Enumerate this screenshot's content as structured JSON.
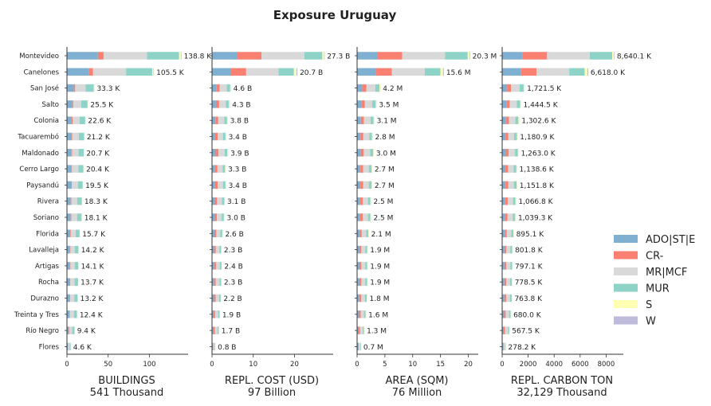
{
  "title": "Exposure Uruguay",
  "legend": {
    "placement": "right",
    "entries": [
      {
        "name": "ADO|ST|E",
        "color": "#7fafd1"
      },
      {
        "name": "CR-",
        "color": "#fa8072"
      },
      {
        "name": "MR|MCF",
        "color": "#d9d9d9"
      },
      {
        "name": "MUR",
        "color": "#8dd3c7"
      },
      {
        "name": "S",
        "color": "#ffffb3"
      },
      {
        "name": "W",
        "color": "#bebada"
      }
    ]
  },
  "chart_data": {
    "type": "bar",
    "orientation": "horizontal",
    "stacked": true,
    "grid": false,
    "categories": [
      "Montevideo",
      "Canelones",
      "San José",
      "Salto",
      "Colonia",
      "Tacuarembó",
      "Maldonado",
      "Cerro Largo",
      "Paysandú",
      "Rivera",
      "Soriano",
      "Florida",
      "Lavalleja",
      "Artigas",
      "Rocha",
      "Durazno",
      "Treinta y Tres",
      "Río Negro",
      "Flores"
    ],
    "panels": [
      {
        "xlabel": "BUILDINGS",
        "subtitle": "541 Thousand",
        "xlim": [
          0,
          145
        ],
        "xticks": [
          0,
          50,
          100
        ],
        "totals": [
          138.8,
          105.5,
          33.3,
          25.5,
          22.6,
          21.2,
          20.7,
          20.4,
          19.5,
          18.3,
          18.1,
          15.7,
          14.2,
          14.1,
          13.7,
          13.2,
          12.4,
          9.4,
          4.6
        ],
        "total_labels": [
          "138.8 K",
          "105.5 K",
          "33.3 K",
          "25.5 K",
          "22.6 K",
          "21.2 K",
          "20.7 K",
          "20.4 K",
          "19.5 K",
          "18.3 K",
          "18.1 K",
          "15.7 K",
          "14.2 K",
          "14.1 K",
          "13.7 K",
          "13.2 K",
          "12.4 K",
          "9.4 K",
          "4.6 K"
        ],
        "shares": [
          [
            0.27,
            0.05,
            0.38,
            0.28,
            0.015,
            0.005
          ],
          [
            0.25,
            0.05,
            0.38,
            0.3,
            0.015,
            0.005
          ],
          [
            0.25,
            0.05,
            0.38,
            0.3,
            0.015,
            0.005
          ],
          [
            0.25,
            0.05,
            0.38,
            0.3,
            0.015,
            0.005
          ],
          [
            0.25,
            0.05,
            0.38,
            0.3,
            0.015,
            0.005
          ],
          [
            0.25,
            0.05,
            0.38,
            0.3,
            0.015,
            0.005
          ],
          [
            0.25,
            0.05,
            0.38,
            0.3,
            0.015,
            0.005
          ],
          [
            0.25,
            0.05,
            0.38,
            0.3,
            0.015,
            0.005
          ],
          [
            0.25,
            0.05,
            0.38,
            0.3,
            0.015,
            0.005
          ],
          [
            0.25,
            0.05,
            0.38,
            0.3,
            0.015,
            0.005
          ],
          [
            0.25,
            0.05,
            0.38,
            0.3,
            0.015,
            0.005
          ],
          [
            0.25,
            0.05,
            0.38,
            0.3,
            0.015,
            0.005
          ],
          [
            0.25,
            0.05,
            0.38,
            0.3,
            0.015,
            0.005
          ],
          [
            0.25,
            0.05,
            0.38,
            0.3,
            0.015,
            0.005
          ],
          [
            0.25,
            0.05,
            0.38,
            0.3,
            0.015,
            0.005
          ],
          [
            0.25,
            0.05,
            0.38,
            0.3,
            0.015,
            0.005
          ],
          [
            0.25,
            0.05,
            0.38,
            0.3,
            0.015,
            0.005
          ],
          [
            0.25,
            0.05,
            0.38,
            0.3,
            0.015,
            0.005
          ],
          [
            0.25,
            0.05,
            0.38,
            0.3,
            0.015,
            0.005
          ]
        ]
      },
      {
        "xlabel": "REPL. COST (USD)",
        "subtitle": "97 Billion",
        "xlim": [
          0,
          29
        ],
        "xticks": [
          0,
          10,
          20
        ],
        "totals": [
          27.3,
          20.7,
          4.6,
          4.3,
          3.8,
          3.4,
          3.9,
          3.3,
          3.4,
          3.1,
          3.0,
          2.6,
          2.3,
          2.4,
          2.3,
          2.2,
          1.9,
          1.7,
          0.8
        ],
        "total_labels": [
          "27.3 B",
          "20.7 B",
          "4.6 B",
          "4.3 B",
          "3.8 B",
          "3.4 B",
          "3.9 B",
          "3.3 B",
          "3.4 B",
          "3.1 B",
          "3.0 B",
          "2.6 B",
          "2.3 B",
          "2.4 B",
          "2.3 B",
          "2.2 B",
          "1.9 B",
          "1.7 B",
          "0.8 B"
        ],
        "shares": [
          [
            0.22,
            0.22,
            0.38,
            0.16,
            0.015,
            0.005
          ],
          [
            0.22,
            0.18,
            0.38,
            0.18,
            0.03,
            0.01
          ],
          [
            0.22,
            0.18,
            0.38,
            0.18,
            0.03,
            0.01
          ],
          [
            0.22,
            0.18,
            0.38,
            0.18,
            0.03,
            0.01
          ],
          [
            0.22,
            0.18,
            0.38,
            0.18,
            0.03,
            0.01
          ],
          [
            0.22,
            0.18,
            0.38,
            0.18,
            0.03,
            0.01
          ],
          [
            0.22,
            0.18,
            0.38,
            0.18,
            0.03,
            0.01
          ],
          [
            0.22,
            0.18,
            0.38,
            0.18,
            0.03,
            0.01
          ],
          [
            0.22,
            0.18,
            0.38,
            0.18,
            0.03,
            0.01
          ],
          [
            0.22,
            0.18,
            0.38,
            0.18,
            0.03,
            0.01
          ],
          [
            0.22,
            0.18,
            0.38,
            0.18,
            0.03,
            0.01
          ],
          [
            0.22,
            0.18,
            0.38,
            0.18,
            0.03,
            0.01
          ],
          [
            0.22,
            0.18,
            0.38,
            0.18,
            0.03,
            0.01
          ],
          [
            0.22,
            0.18,
            0.38,
            0.18,
            0.03,
            0.01
          ],
          [
            0.22,
            0.18,
            0.38,
            0.18,
            0.03,
            0.01
          ],
          [
            0.22,
            0.18,
            0.38,
            0.18,
            0.03,
            0.01
          ],
          [
            0.22,
            0.18,
            0.38,
            0.18,
            0.03,
            0.01
          ],
          [
            0.22,
            0.18,
            0.38,
            0.18,
            0.03,
            0.01
          ],
          [
            0.22,
            0.18,
            0.38,
            0.18,
            0.03,
            0.01
          ]
        ]
      },
      {
        "xlabel": "AREA (SQM)",
        "subtitle": "76 Million",
        "xlim": [
          0,
          21.5
        ],
        "xticks": [
          0,
          5,
          10,
          15,
          20
        ],
        "totals": [
          20.3,
          15.6,
          4.2,
          3.5,
          3.1,
          2.8,
          3.0,
          2.7,
          2.7,
          2.5,
          2.5,
          2.1,
          1.9,
          1.9,
          1.9,
          1.8,
          1.6,
          1.3,
          0.7
        ],
        "total_labels": [
          "20.3 M",
          "15.6 M",
          "4.2 M",
          "3.5 M",
          "3.1 M",
          "2.8 M",
          "3.0 M",
          "2.7 M",
          "2.7 M",
          "2.5 M",
          "2.5 M",
          "2.1 M",
          "1.9 M",
          "1.9 M",
          "1.9 M",
          "1.8 M",
          "1.6 M",
          "1.3 M",
          "0.7 M"
        ],
        "shares": [
          [
            0.18,
            0.22,
            0.38,
            0.2,
            0.015,
            0.005
          ],
          [
            0.22,
            0.18,
            0.38,
            0.18,
            0.03,
            0.01
          ],
          [
            0.22,
            0.18,
            0.38,
            0.18,
            0.03,
            0.01
          ],
          [
            0.22,
            0.18,
            0.38,
            0.18,
            0.03,
            0.01
          ],
          [
            0.22,
            0.18,
            0.38,
            0.18,
            0.03,
            0.01
          ],
          [
            0.22,
            0.18,
            0.38,
            0.18,
            0.03,
            0.01
          ],
          [
            0.22,
            0.18,
            0.38,
            0.18,
            0.03,
            0.01
          ],
          [
            0.22,
            0.18,
            0.38,
            0.18,
            0.03,
            0.01
          ],
          [
            0.22,
            0.18,
            0.38,
            0.18,
            0.03,
            0.01
          ],
          [
            0.22,
            0.18,
            0.38,
            0.18,
            0.03,
            0.01
          ],
          [
            0.22,
            0.18,
            0.38,
            0.18,
            0.03,
            0.01
          ],
          [
            0.22,
            0.18,
            0.38,
            0.18,
            0.03,
            0.01
          ],
          [
            0.22,
            0.18,
            0.38,
            0.18,
            0.03,
            0.01
          ],
          [
            0.22,
            0.18,
            0.38,
            0.18,
            0.03,
            0.01
          ],
          [
            0.22,
            0.18,
            0.38,
            0.18,
            0.03,
            0.01
          ],
          [
            0.22,
            0.18,
            0.38,
            0.18,
            0.03,
            0.01
          ],
          [
            0.22,
            0.18,
            0.38,
            0.18,
            0.03,
            0.01
          ],
          [
            0.22,
            0.18,
            0.38,
            0.18,
            0.03,
            0.01
          ],
          [
            0.22,
            0.18,
            0.38,
            0.18,
            0.03,
            0.01
          ]
        ]
      },
      {
        "xlabel": "REPL. CARBON TON",
        "subtitle": "32,129 Thousand",
        "xlim": [
          0,
          9200
        ],
        "xticks": [
          0,
          2000,
          4000,
          6000,
          8000
        ],
        "totals": [
          8640.1,
          6618.0,
          1721.5,
          1444.5,
          1302.6,
          1180.9,
          1263.0,
          1138.6,
          1151.8,
          1066.8,
          1039.3,
          895.1,
          801.8,
          797.1,
          778.5,
          763.8,
          680.0,
          567.5,
          278.2
        ],
        "total_labels": [
          "8,640.1 K",
          "6,618.0 K",
          "1,721.5 K",
          "1,444.5 K",
          "1,302.6 K",
          "1,180.9 K",
          "1,263.0 K",
          "1,138.6 K",
          "1,151.8 K",
          "1,066.8 K",
          "1,039.3 K",
          "895.1 K",
          "801.8 K",
          "797.1 K",
          "778.5 K",
          "763.8 K",
          "680.0 K",
          "567.5 K",
          "278.2 K"
        ],
        "shares": [
          [
            0.18,
            0.22,
            0.38,
            0.2,
            0.015,
            0.005
          ],
          [
            0.22,
            0.18,
            0.38,
            0.18,
            0.03,
            0.01
          ],
          [
            0.22,
            0.18,
            0.38,
            0.18,
            0.03,
            0.01
          ],
          [
            0.22,
            0.18,
            0.38,
            0.18,
            0.03,
            0.01
          ],
          [
            0.22,
            0.18,
            0.38,
            0.18,
            0.03,
            0.01
          ],
          [
            0.22,
            0.18,
            0.38,
            0.18,
            0.03,
            0.01
          ],
          [
            0.22,
            0.18,
            0.38,
            0.18,
            0.03,
            0.01
          ],
          [
            0.22,
            0.18,
            0.38,
            0.18,
            0.03,
            0.01
          ],
          [
            0.22,
            0.18,
            0.38,
            0.18,
            0.03,
            0.01
          ],
          [
            0.22,
            0.18,
            0.38,
            0.18,
            0.03,
            0.01
          ],
          [
            0.22,
            0.18,
            0.38,
            0.18,
            0.03,
            0.01
          ],
          [
            0.22,
            0.18,
            0.38,
            0.18,
            0.03,
            0.01
          ],
          [
            0.22,
            0.18,
            0.38,
            0.18,
            0.03,
            0.01
          ],
          [
            0.22,
            0.18,
            0.38,
            0.18,
            0.03,
            0.01
          ],
          [
            0.22,
            0.18,
            0.38,
            0.18,
            0.03,
            0.01
          ],
          [
            0.22,
            0.18,
            0.38,
            0.18,
            0.03,
            0.01
          ],
          [
            0.22,
            0.18,
            0.38,
            0.18,
            0.03,
            0.01
          ],
          [
            0.22,
            0.18,
            0.38,
            0.18,
            0.03,
            0.01
          ],
          [
            0.22,
            0.18,
            0.38,
            0.18,
            0.03,
            0.01
          ]
        ]
      }
    ]
  }
}
